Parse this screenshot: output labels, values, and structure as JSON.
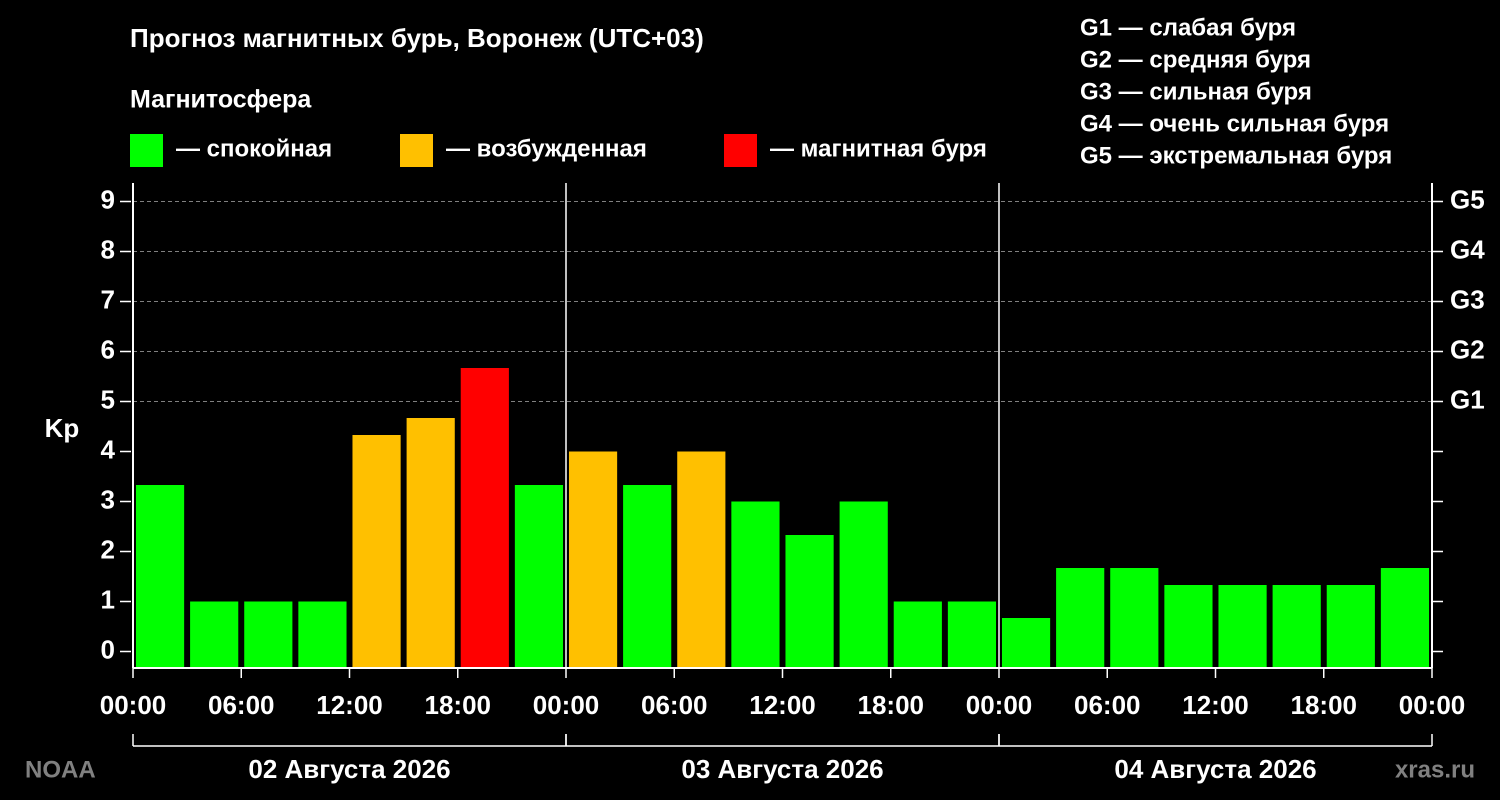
{
  "chart_data": {
    "type": "bar",
    "title": "Прогноз магнитных бурь, Воронеж (UTC+03)",
    "subtitle": "Магнитосфера",
    "legend": [
      {
        "label": "— спокойная",
        "color": "#00ff00"
      },
      {
        "label": "— возбужденная",
        "color": "#ffc000"
      },
      {
        "label": "— магнитная буря",
        "color": "#ff0000"
      }
    ],
    "notes": [
      "G1 — слабая буря",
      "G2 — средняя буря",
      "G3 — сильная буря",
      "G4 — очень сильная буря",
      "G5 — экстремальная буря"
    ],
    "ylabel": "Kp",
    "x": [
      1.5,
      4.5,
      7.5,
      10.5,
      13.5,
      16.5,
      19.5,
      22.5,
      25.5,
      28.5,
      31.5,
      34.5,
      37.5,
      40.5,
      43.5,
      46.5,
      49.5,
      52.5,
      55.5,
      58.5,
      61.5,
      64.5,
      67.5,
      70.5
    ],
    "values": [
      3.33,
      1,
      1,
      1,
      4.33,
      4.67,
      5.67,
      3.33,
      4,
      3.33,
      4,
      3,
      2.33,
      3,
      1,
      1,
      0.67,
      1.67,
      1.67,
      1.33,
      1.33,
      1.33,
      1.33,
      1.67
    ],
    "colors": [
      "#00ff00",
      "#00ff00",
      "#00ff00",
      "#00ff00",
      "#ffc000",
      "#ffc000",
      "#ff0000",
      "#00ff00",
      "#ffc000",
      "#00ff00",
      "#ffc000",
      "#00ff00",
      "#00ff00",
      "#00ff00",
      "#00ff00",
      "#00ff00",
      "#00ff00",
      "#00ff00",
      "#00ff00",
      "#00ff00",
      "#00ff00",
      "#00ff00",
      "#00ff00",
      "#00ff00"
    ],
    "xlim": [
      0,
      72
    ],
    "xticks": [
      {
        "value": 0,
        "label": "00:00"
      },
      {
        "value": 6,
        "label": "06:00"
      },
      {
        "value": 12,
        "label": "12:00"
      },
      {
        "value": 18,
        "label": "18:00"
      },
      {
        "value": 24,
        "label": "00:00"
      },
      {
        "value": 30,
        "label": "06:00"
      },
      {
        "value": 36,
        "label": "12:00"
      },
      {
        "value": 42,
        "label": "18:00"
      },
      {
        "value": 48,
        "label": "00:00"
      },
      {
        "value": 54,
        "label": "06:00"
      },
      {
        "value": 60,
        "label": "12:00"
      },
      {
        "value": 66,
        "label": "18:00"
      },
      {
        "value": 72,
        "label": "00:00"
      }
    ],
    "days": [
      {
        "label": "02 Августа 2026",
        "start": 0,
        "end": 24
      },
      {
        "label": "03 Августа 2026",
        "start": 24,
        "end": 48
      },
      {
        "label": "04 Августа 2026",
        "start": 48,
        "end": 72
      }
    ],
    "ylim": [
      -0.33,
      9.37
    ],
    "yticks": [
      0,
      1,
      2,
      3,
      4,
      5,
      6,
      7,
      8,
      9
    ],
    "y2lim": [
      -0.33,
      9.37
    ],
    "y2ticks": [
      {
        "value": 5,
        "label": "G1"
      },
      {
        "value": 6,
        "label": "G2"
      },
      {
        "value": 7,
        "label": "G3"
      },
      {
        "value": 8,
        "label": "G4"
      },
      {
        "value": 9,
        "label": "G5"
      }
    ],
    "grid": true,
    "source": "NOAA",
    "credit": "xras.ru"
  }
}
